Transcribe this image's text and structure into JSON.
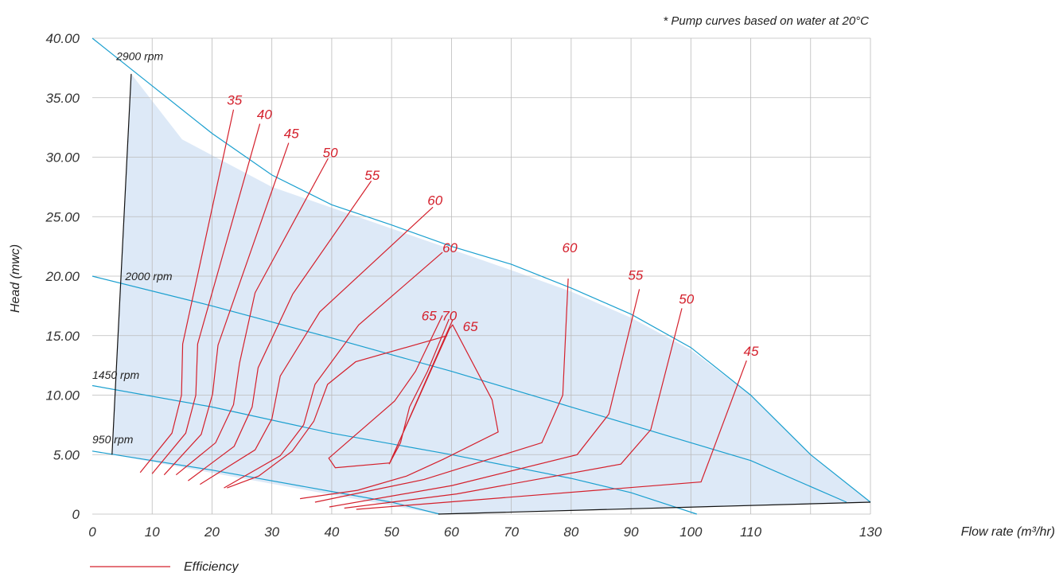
{
  "chart_data": {
    "type": "line",
    "note": "* Pump curves based on water at 20°C",
    "ylabel": "Head (mwc)",
    "xlabel": "Flow rate (m³/hr)",
    "xlim": [
      0,
      130
    ],
    "ylim": [
      0,
      40
    ],
    "x_ticks": [
      0,
      10,
      20,
      30,
      40,
      50,
      60,
      70,
      80,
      90,
      100,
      110,
      130
    ],
    "x_tick_labels": [
      "0",
      "10",
      "20",
      "30",
      "40",
      "50",
      "60",
      "70",
      "80",
      "90",
      "100",
      "110",
      "130"
    ],
    "y_ticks": [
      0,
      5,
      10,
      15,
      20,
      25,
      30,
      35,
      40
    ],
    "y_tick_labels": [
      "0",
      "5.00",
      "10.00",
      "15.00",
      "20.00",
      "25.00",
      "30.00",
      "35.00",
      "40.00"
    ],
    "grid": true,
    "colors": {
      "speed_curve": "#1a9fcf",
      "efficiency": "#d4202c",
      "envelope_fill": "#dde9f7",
      "boundary": "#111111",
      "grid": "#bbbbbb"
    },
    "operating_envelope": [
      [
        6.5,
        37.0
      ],
      [
        15,
        31.5
      ],
      [
        30,
        27.5
      ],
      [
        50,
        24.0
      ],
      [
        70,
        20.5
      ],
      [
        80,
        18.7
      ],
      [
        90,
        16.5
      ],
      [
        100,
        13.8
      ],
      [
        110,
        10.0
      ],
      [
        120,
        5.0
      ],
      [
        130,
        1.0
      ],
      [
        57.8,
        0
      ],
      [
        3.3,
        5.0
      ]
    ],
    "speed_curves": [
      {
        "label": "2900 rpm",
        "points": [
          [
            0,
            40.0
          ],
          [
            10,
            36.0
          ],
          [
            20,
            32.0
          ],
          [
            30,
            28.5
          ],
          [
            40,
            26.0
          ],
          [
            50,
            24.3
          ],
          [
            60,
            22.5
          ],
          [
            70,
            21.0
          ],
          [
            80,
            19.0
          ],
          [
            90,
            16.8
          ],
          [
            100,
            14.0
          ],
          [
            110,
            10.0
          ],
          [
            120,
            5.0
          ],
          [
            130,
            1.0
          ]
        ]
      },
      {
        "label": "2000 rpm",
        "points": [
          [
            0,
            20.0
          ],
          [
            20,
            17.5
          ],
          [
            40,
            14.8
          ],
          [
            60,
            12.0
          ],
          [
            80,
            9.0
          ],
          [
            100,
            6.0
          ],
          [
            110,
            4.5
          ],
          [
            126,
            1.0
          ]
        ]
      },
      {
        "label": "1450 rpm",
        "points": [
          [
            0,
            10.8
          ],
          [
            20,
            9.0
          ],
          [
            40,
            6.8
          ],
          [
            60,
            5.0
          ],
          [
            80,
            3.0
          ],
          [
            90,
            1.8
          ],
          [
            101,
            0
          ]
        ]
      },
      {
        "label": "950 rpm",
        "points": [
          [
            0,
            5.3
          ],
          [
            20,
            3.7
          ],
          [
            40,
            1.9
          ],
          [
            50,
            1.0
          ],
          [
            58,
            0
          ]
        ]
      }
    ],
    "speed_labels": [
      {
        "label": "2900 rpm",
        "x": 4,
        "y": 38.5
      },
      {
        "label": "2000 rpm",
        "x": 5.5,
        "y": 20.0
      },
      {
        "label": "1450 rpm",
        "x": 0,
        "y": 11.7
      },
      {
        "label": "950 rpm",
        "x": 0,
        "y": 6.3
      }
    ],
    "boundary_lines": [
      [
        [
          6.5,
          37.0
        ],
        [
          3.3,
          5.0
        ]
      ],
      [
        [
          57.8,
          0
        ],
        [
          130,
          1.0
        ]
      ]
    ],
    "efficiency_series": [
      {
        "label": "35",
        "points": [
          [
            8,
            3.5
          ],
          [
            13.3,
            6.8
          ],
          [
            14.9,
            10.0
          ],
          [
            15.1,
            14.3
          ],
          [
            23.6,
            34.0
          ]
        ],
        "label_at": [
          22.5,
          34.4
        ]
      },
      {
        "label": "40",
        "points": [
          [
            10,
            3.4
          ],
          [
            15.6,
            6.8
          ],
          [
            17.3,
            10.0
          ],
          [
            17.6,
            14.3
          ],
          [
            28.0,
            32.8
          ]
        ],
        "label_at": [
          27.5,
          33.2
        ]
      },
      {
        "label": "45",
        "points": [
          [
            12,
            3.3
          ],
          [
            18.2,
            6.7
          ],
          [
            20.1,
            10.1
          ],
          [
            21.0,
            14.2
          ],
          [
            32.8,
            31.2
          ]
        ],
        "label_at": [
          32.0,
          31.6
        ]
      },
      {
        "label": "50",
        "points": [
          [
            14,
            3.3
          ],
          [
            20.6,
            6.0
          ],
          [
            23.6,
            9.2
          ],
          [
            24.6,
            12.7
          ],
          [
            27.2,
            18.6
          ],
          [
            39.4,
            29.9
          ]
        ],
        "label_at": [
          38.5,
          30.0
        ]
      },
      {
        "label": "55",
        "points": [
          [
            16,
            2.8
          ],
          [
            23.7,
            5.7
          ],
          [
            26.7,
            9.0
          ],
          [
            27.7,
            12.3
          ],
          [
            33.5,
            18.5
          ],
          [
            46.6,
            28.0
          ]
        ],
        "label_at": [
          45.5,
          28.1
        ]
      },
      {
        "label": "60",
        "points": [
          [
            18,
            2.5
          ],
          [
            27.2,
            5.4
          ],
          [
            30.0,
            8.0
          ],
          [
            31.4,
            11.6
          ],
          [
            38.0,
            17.0
          ],
          [
            56.9,
            25.8
          ]
        ],
        "label_at": [
          56.0,
          26.0
        ]
      },
      {
        "label": "60",
        "points": [
          [
            22,
            2.2
          ],
          [
            31.4,
            4.9
          ],
          [
            35.3,
            7.5
          ],
          [
            37.2,
            10.9
          ],
          [
            44.5,
            15.9
          ],
          [
            58.5,
            22.0
          ]
        ],
        "label_at": [
          58.5,
          22.0
        ]
      },
      {
        "label": "65",
        "points": [
          [
            58.5,
            16.7
          ],
          [
            58.3,
            16.5
          ],
          [
            54.0,
            12.0
          ],
          [
            50.5,
            9.5
          ],
          [
            39.5,
            4.7
          ],
          [
            40.6,
            3.9
          ],
          [
            49.7,
            4.3
          ],
          [
            59.2,
            15.2
          ],
          [
            60.2,
            16.3
          ]
        ],
        "label_at": [
          55.0,
          16.3
        ]
      },
      {
        "label": "70",
        "points": [
          [
            59.6,
            16.4
          ],
          [
            56.0,
            12.0
          ],
          [
            53.0,
            9.0
          ],
          [
            51.5,
            6.0
          ],
          [
            49.6,
            4.2
          ],
          [
            59.7,
            15.6
          ],
          [
            60.2,
            15.9
          ],
          [
            66.8,
            9.6
          ],
          [
            67.8,
            6.9
          ],
          [
            58.6,
            4.6
          ],
          [
            52.5,
            3.2
          ],
          [
            44.3,
            2.0
          ],
          [
            34.7,
            1.3
          ]
        ],
        "label_at": [
          58.4,
          16.3
        ]
      },
      {
        "label": "65",
        "points": [
          [
            59.3,
            15.0
          ],
          [
            44.0,
            12.8
          ],
          [
            39.3,
            10.9
          ],
          [
            37.0,
            7.8
          ],
          [
            33.4,
            5.3
          ],
          [
            27.8,
            3.2
          ],
          [
            22.5,
            2.2
          ]
        ],
        "label_at": [
          61.9,
          15.4
        ]
      },
      {
        "label": "60",
        "points": [
          [
            79.5,
            19.8
          ],
          [
            78.6,
            10.0
          ],
          [
            75.1,
            6.0
          ],
          [
            55.4,
            2.9
          ],
          [
            37.2,
            1.0
          ]
        ],
        "label_at": [
          78.5,
          22.0
        ]
      },
      {
        "label": "55",
        "points": [
          [
            91.4,
            18.9
          ],
          [
            86.3,
            8.4
          ],
          [
            81.0,
            5.0
          ],
          [
            60.1,
            2.4
          ],
          [
            39.6,
            0.6
          ]
        ],
        "label_at": [
          89.5,
          19.7
        ]
      },
      {
        "label": "50",
        "points": [
          [
            98.5,
            17.3
          ],
          [
            93.3,
            7.1
          ],
          [
            88.3,
            4.2
          ],
          [
            60.9,
            1.7
          ],
          [
            42.1,
            0.5
          ]
        ],
        "label_at": [
          98.0,
          17.7
        ]
      },
      {
        "label": "45",
        "points": [
          [
            109.3,
            12.9
          ],
          [
            103.5,
            5.1
          ],
          [
            101.7,
            2.7
          ],
          [
            61.6,
            1.1
          ],
          [
            44.1,
            0.4
          ]
        ],
        "label_at": [
          108.8,
          13.3
        ]
      }
    ],
    "legend": [
      {
        "label": "Efficiency",
        "color": "#d4202c"
      }
    ],
    "legend_position": "bottom-left"
  }
}
